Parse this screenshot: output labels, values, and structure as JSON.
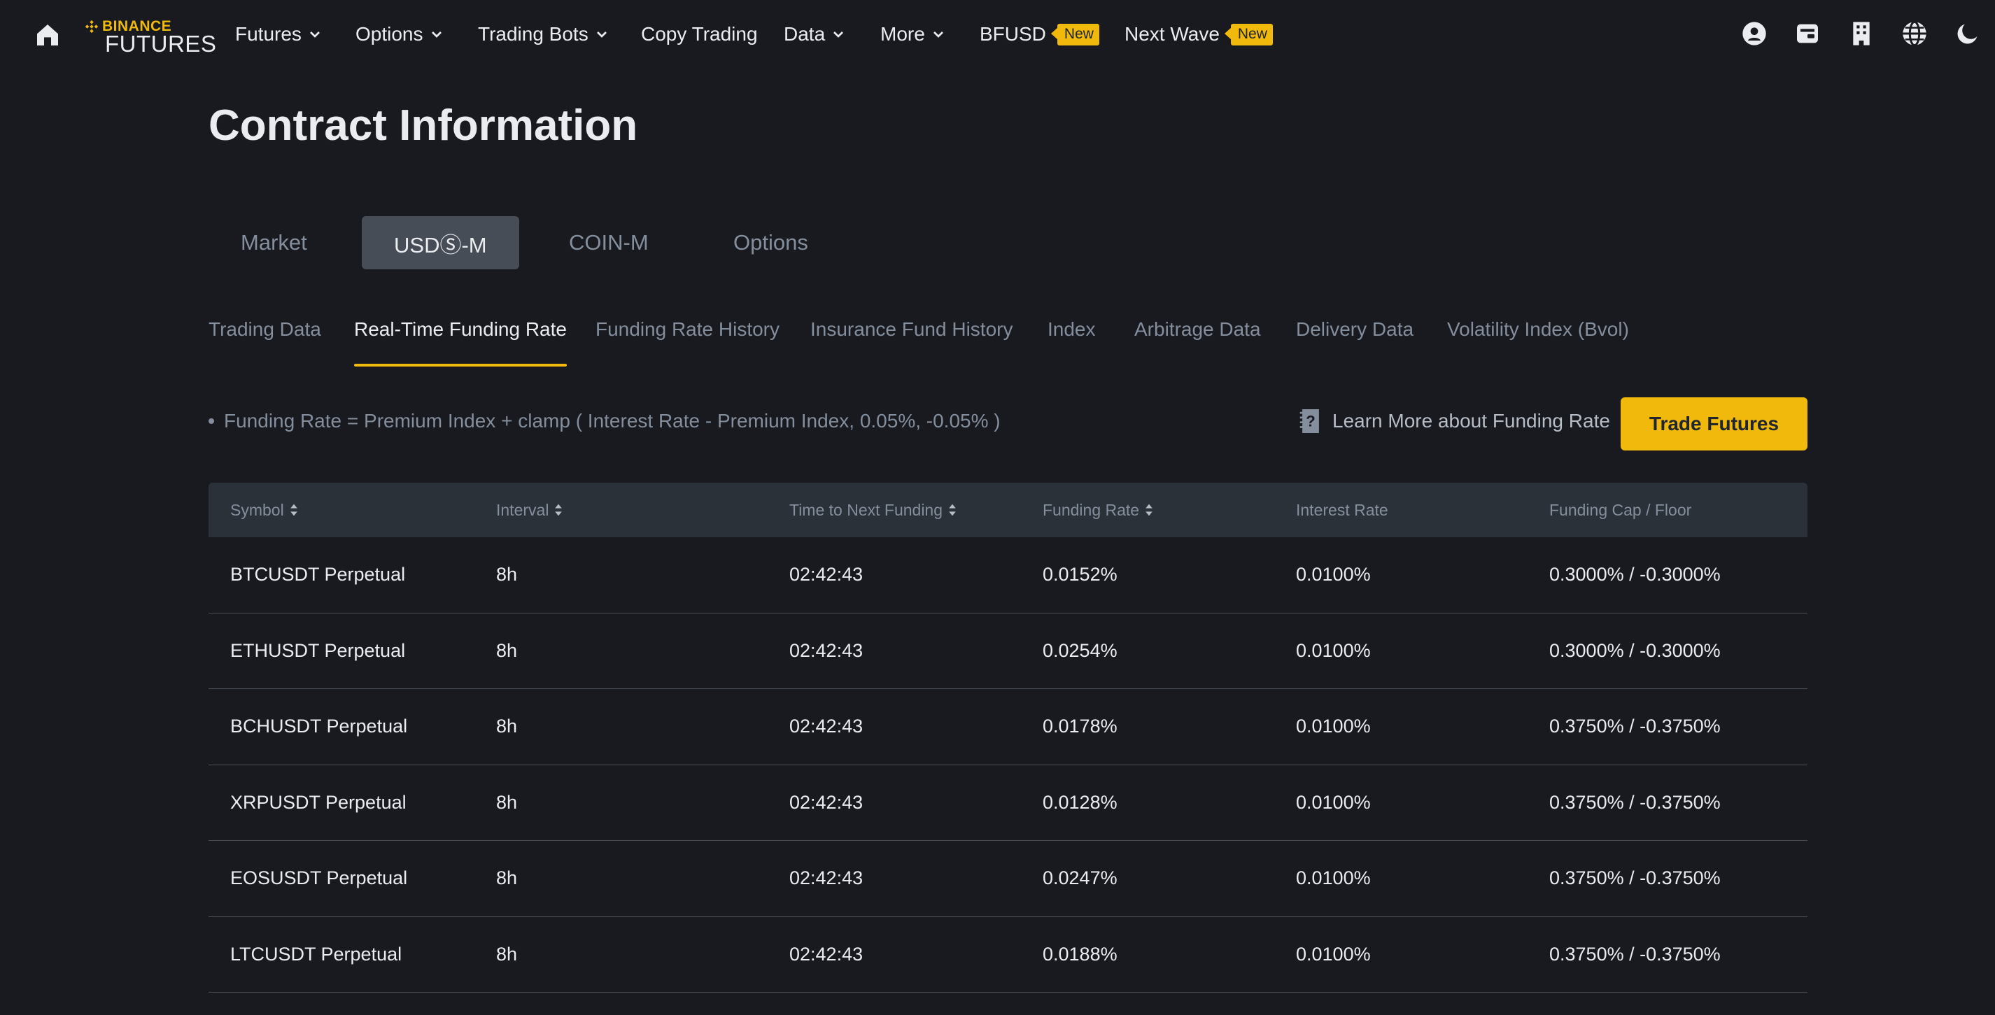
{
  "nav": {
    "logo_top": "BINANCE",
    "logo_bottom": "FUTURES",
    "items": [
      {
        "label": "Futures",
        "dropdown": true
      },
      {
        "label": "Options",
        "dropdown": true
      },
      {
        "label": "Trading Bots",
        "dropdown": true
      },
      {
        "label": "Copy Trading",
        "dropdown": false
      },
      {
        "label": "Data",
        "dropdown": true
      },
      {
        "label": "More",
        "dropdown": true
      },
      {
        "label": "BFUSD",
        "badge": "New"
      },
      {
        "label": "Next Wave",
        "badge": "New"
      }
    ],
    "right_icons": [
      "user-icon",
      "wallet-icon",
      "building-icon",
      "globe-icon",
      "moon-icon"
    ]
  },
  "page": {
    "title": "Contract Information"
  },
  "category_tabs": [
    {
      "label": "Market",
      "active": false
    },
    {
      "label": "USDⓈ-M",
      "active": true
    },
    {
      "label": "COIN-M",
      "active": false
    },
    {
      "label": "Options",
      "active": false
    }
  ],
  "sub_tabs": [
    {
      "label": "Trading Data",
      "active": false
    },
    {
      "label": "Real-Time Funding Rate",
      "active": true
    },
    {
      "label": "Funding Rate History",
      "active": false
    },
    {
      "label": "Insurance Fund History",
      "active": false
    },
    {
      "label": "Index",
      "active": false
    },
    {
      "label": "Arbitrage Data",
      "active": false
    },
    {
      "label": "Delivery Data",
      "active": false
    },
    {
      "label": "Volatility Index (Bvol)",
      "active": false
    }
  ],
  "formula": "Funding Rate = Premium Index + clamp ( Interest Rate - Premium Index, 0.05%, -0.05% )",
  "learn_more": "Learn More about Funding Rate",
  "trade_button": "Trade Futures",
  "table": {
    "columns": [
      {
        "label": "Symbol",
        "sortable": true
      },
      {
        "label": "Interval",
        "sortable": true
      },
      {
        "label": "Time to Next Funding",
        "sortable": true
      },
      {
        "label": "Funding Rate",
        "sortable": true
      },
      {
        "label": "Interest Rate",
        "sortable": false
      },
      {
        "label": "Funding Cap / Floor",
        "sortable": false
      }
    ],
    "rows": [
      [
        "BTCUSDT Perpetual",
        "8h",
        "02:42:43",
        "0.0152%",
        "0.0100%",
        "0.3000% / -0.3000%"
      ],
      [
        "ETHUSDT Perpetual",
        "8h",
        "02:42:43",
        "0.0254%",
        "0.0100%",
        "0.3000% / -0.3000%"
      ],
      [
        "BCHUSDT Perpetual",
        "8h",
        "02:42:43",
        "0.0178%",
        "0.0100%",
        "0.3750% / -0.3750%"
      ],
      [
        "XRPUSDT Perpetual",
        "8h",
        "02:42:43",
        "0.0128%",
        "0.0100%",
        "0.3750% / -0.3750%"
      ],
      [
        "EOSUSDT Perpetual",
        "8h",
        "02:42:43",
        "0.0247%",
        "0.0100%",
        "0.3750% / -0.3750%"
      ],
      [
        "LTCUSDT Perpetual",
        "8h",
        "02:42:43",
        "0.0188%",
        "0.0100%",
        "0.3750% / -0.3750%"
      ]
    ]
  },
  "colors": {
    "background": "#181a20",
    "accent": "#f0b90b",
    "header_row": "#2b3139",
    "active_tab": "#474d57",
    "muted_text": "#848e9c"
  }
}
